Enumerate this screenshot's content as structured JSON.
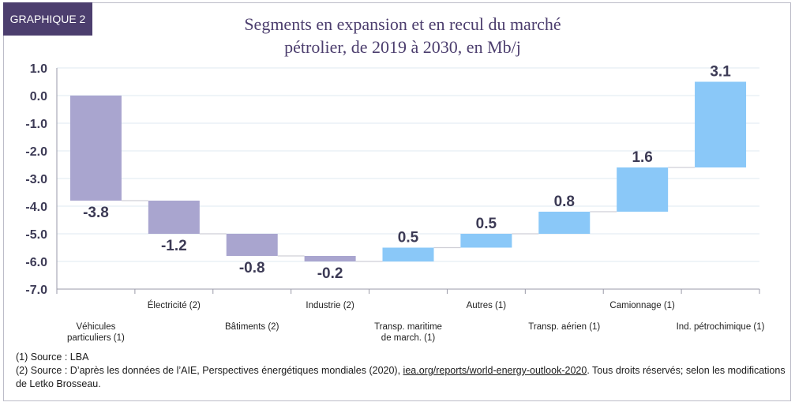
{
  "badge": "GRAPHIQUE 2",
  "title_line1": "Segments en expansion et en recul du marché",
  "title_line2": "pétrolier, de 2019 à 2030, en Mb/j",
  "colors": {
    "negative": "#a9a5cf",
    "positive": "#8ac8f8",
    "label": "#3c3a55",
    "accent": "#4c3e6e"
  },
  "chart_data": {
    "type": "bar",
    "subtype": "waterfall",
    "categories": [
      [
        "Véhicules",
        "particuliers (1)"
      ],
      [
        "Électricité (2)"
      ],
      [
        "Bâtiments (2)"
      ],
      [
        "Industrie (2)"
      ],
      [
        "Transp. maritime",
        "de march. (1)"
      ],
      [
        "Autres (1)"
      ],
      [
        "Transp. aérien (1)"
      ],
      [
        "Camionnage (1)"
      ],
      [
        "Ind. pétrochimique (1)"
      ]
    ],
    "values": [
      -3.8,
      -1.2,
      -0.8,
      -0.2,
      0.5,
      0.5,
      0.8,
      1.6,
      3.1
    ],
    "value_labels": [
      "-3.8",
      "-1.2",
      "-0.8",
      "-0.2",
      "0.5",
      "0.5",
      "0.8",
      "1.6",
      "3.1"
    ],
    "ylim": [
      -7.0,
      1.0
    ],
    "yticks": [
      "1.0",
      "0.0",
      "-1.0",
      "-2.0",
      "-3.0",
      "-4.0",
      "-5.0",
      "-6.0",
      "-7.0"
    ],
    "grid": true
  },
  "notes": {
    "note1": "(1) Source : LBA",
    "note2_prefix": "(2) Source : D’après les données de l’AIE, Perspectives énergétiques mondiales (2020), ",
    "note2_link": "iea.org/reports/world-energy-outlook-2020",
    "note2_suffix": ". Tous droits réservés; selon les modifications de Letko Brosseau."
  }
}
